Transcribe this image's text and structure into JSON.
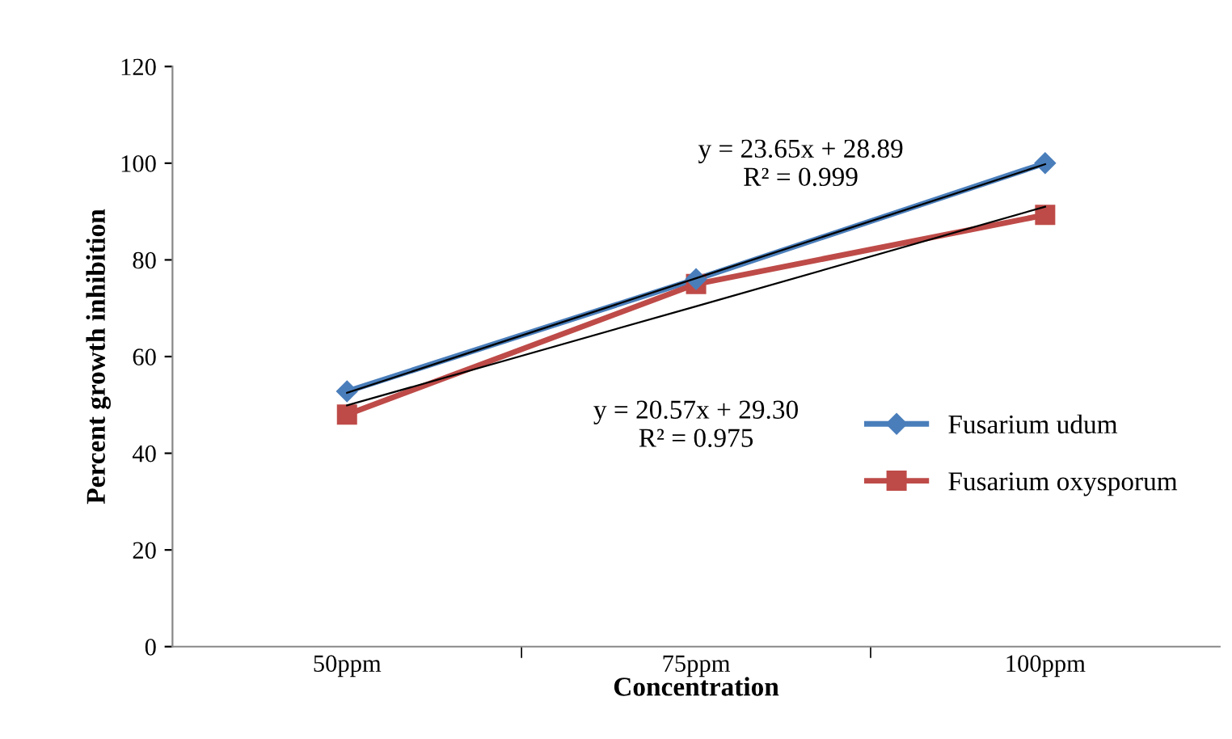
{
  "chart_data": {
    "type": "line",
    "xlabel": "Concentration",
    "ylabel": "Percent growth inhibition",
    "categories": [
      "50ppm",
      "75ppm",
      "100ppm"
    ],
    "series": [
      {
        "name": "Fusarium udum",
        "color": "#4a7ebb",
        "marker": "diamond",
        "values": [
          52.8,
          76,
          100
        ]
      },
      {
        "name": "Fusarium oxysporum",
        "color": "#be4b48",
        "marker": "square",
        "values": [
          48,
          75,
          89.3
        ]
      },
      {
        "type": "line",
        "color": "#000000",
        "marker": "none",
        "values": [
          52.5,
          76.2,
          99.8
        ]
      },
      {
        "type": "line",
        "color": "#000000",
        "marker": "none",
        "values": [
          49.9,
          70.4,
          91
        ]
      }
    ],
    "annotations": [
      "y = 23.65x + 28.89\nR² = 0.999",
      "y = 20.57x + 29.30\nR² = 0.975"
    ],
    "ylim": [
      0,
      120
    ],
    "yticks": [
      0,
      20,
      40,
      60,
      80,
      100,
      120
    ],
    "grid": false,
    "legend": "right",
    "line_style": "solid"
  }
}
